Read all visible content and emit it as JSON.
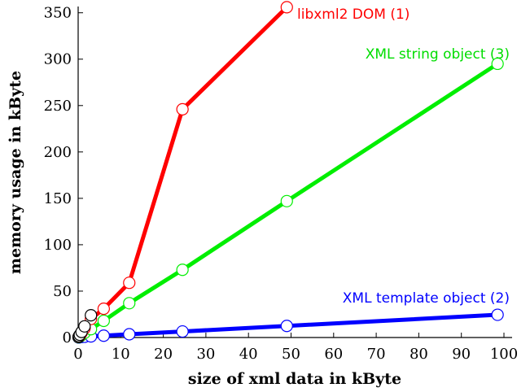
{
  "chart_data": {
    "type": "line",
    "xlabel": "size of xml data in kByte",
    "ylabel": "memory usage in kByte",
    "xlim": [
      0,
      100
    ],
    "ylim": [
      0,
      355
    ],
    "xticks": [
      0,
      10,
      20,
      30,
      40,
      50,
      60,
      70,
      80,
      90,
      100
    ],
    "yticks": [
      0,
      50,
      100,
      150,
      200,
      250,
      300,
      350
    ],
    "grid": false,
    "legend": "none",
    "series": [
      {
        "name": "XML template object (2)",
        "color": "#0000ff",
        "marker": "open-circle",
        "x": [
          0.1,
          0.2,
          0.4,
          0.8,
          1.5,
          3,
          6,
          12,
          24.5,
          49,
          98.5
        ],
        "y": [
          0.1,
          0.2,
          0.3,
          0.5,
          0.8,
          1.2,
          2,
          3.5,
          6.5,
          12.5,
          24.5
        ]
      },
      {
        "name": "XML string object (3)",
        "color": "#00ee00",
        "marker": "open-circle",
        "x": [
          0.1,
          0.2,
          0.4,
          0.8,
          1.5,
          3,
          6,
          12,
          24.5,
          49,
          98.5
        ],
        "y": [
          0.3,
          0.6,
          1.2,
          2.5,
          5,
          9,
          18,
          37,
          73,
          147,
          295
        ]
      },
      {
        "name": "libxml2 DOM (1)",
        "color": "#ff0000",
        "marker": "open-circle",
        "x": [
          0.1,
          0.2,
          0.4,
          0.8,
          1.5,
          3,
          6,
          12,
          24.5,
          49
        ],
        "y": [
          0.5,
          1,
          2,
          5,
          10,
          20,
          31,
          59,
          246,
          356
        ]
      },
      {
        "name": "",
        "color": "#000000",
        "marker": "open-circle",
        "x": [
          0.1,
          0.2,
          0.4,
          0.8,
          1.5,
          3
        ],
        "y": [
          0.5,
          1.5,
          3,
          6,
          12,
          24
        ]
      }
    ]
  }
}
